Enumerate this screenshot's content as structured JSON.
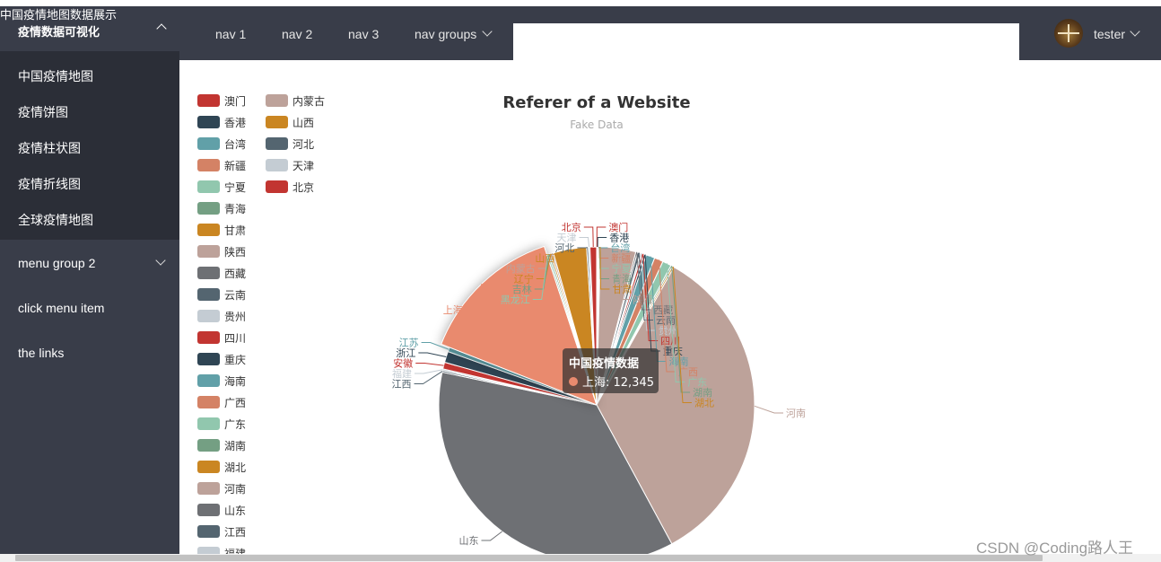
{
  "sidebar": {
    "brand": "中国疫情地图数据展示",
    "group1_title": "疫情数据可视化",
    "items": [
      "中国疫情地图",
      "疫情饼图",
      "疫情柱状图",
      "疫情折线图",
      "全球疫情地图"
    ],
    "group2_title": "menu group 2",
    "click_item": "click menu item",
    "links": "the links"
  },
  "header": {
    "nav": [
      "nav 1",
      "nav 2",
      "nav 3",
      "nav groups"
    ],
    "user": "tester"
  },
  "watermark": "CSDN @Coding路人王",
  "chart_data": {
    "type": "pie",
    "title": "Referer of a Website",
    "subtitle": "Fake Data",
    "tooltip": {
      "series_name": "中国疫情数据",
      "item": "上海",
      "value_text": "12,345"
    },
    "legend": {
      "placement": "left",
      "visible_entries": [
        "澳门",
        "香港",
        "台湾",
        "新疆",
        "宁夏",
        "青海",
        "甘肃",
        "陕西",
        "西藏",
        "云南",
        "贵州",
        "四川",
        "重庆",
        "海南",
        "广西",
        "广东",
        "湖南",
        "湖北",
        "河南",
        "山东",
        "江西",
        "福建",
        "内蒙古",
        "山西",
        "河北",
        "天津",
        "北京"
      ]
    },
    "slices": [
      {
        "name": "澳门",
        "value": 46,
        "color": "#c23531"
      },
      {
        "name": "香港",
        "value": 80,
        "color": "#2f4554"
      },
      {
        "name": "台湾",
        "value": 90,
        "color": "#61a0a8"
      },
      {
        "name": "新疆",
        "value": 30,
        "color": "#d48265"
      },
      {
        "name": "宁夏",
        "value": 30,
        "color": "#91c7ae"
      },
      {
        "name": "青海",
        "value": 25,
        "color": "#749f83"
      },
      {
        "name": "甘肃",
        "value": 30,
        "color": "#ca8622"
      },
      {
        "name": "陕西",
        "value": 3200,
        "color": "#bda29a"
      },
      {
        "name": "西藏",
        "value": 150,
        "color": "#6e7074"
      },
      {
        "name": "云南",
        "value": 260,
        "color": "#546570"
      },
      {
        "name": "贵州",
        "value": 150,
        "color": "#c4ccd3"
      },
      {
        "name": "四川",
        "value": 200,
        "color": "#c23531"
      },
      {
        "name": "重庆",
        "value": 200,
        "color": "#2f4554"
      },
      {
        "name": "海南",
        "value": 800,
        "color": "#61a0a8"
      },
      {
        "name": "广西",
        "value": 800,
        "color": "#d48265"
      },
      {
        "name": "广东",
        "value": 800,
        "color": "#91c7ae"
      },
      {
        "name": "湖南",
        "value": 150,
        "color": "#749f83"
      },
      {
        "name": "湖北",
        "value": 150,
        "color": "#ca8622"
      },
      {
        "name": "河南",
        "value": 30000,
        "color": "#bda29a"
      },
      {
        "name": "山东",
        "value": 32000,
        "color": "#6e7074"
      },
      {
        "name": "江西",
        "value": 150,
        "color": "#546570"
      },
      {
        "name": "福建",
        "value": 150,
        "color": "#c4ccd3"
      },
      {
        "name": "安徽",
        "value": 600,
        "color": "#c23531"
      },
      {
        "name": "浙江",
        "value": 1000,
        "color": "#2f4554"
      },
      {
        "name": "江苏",
        "value": 400,
        "color": "#61a0a8"
      },
      {
        "name": "上海",
        "value": 12345,
        "color": "#e98a6e",
        "highlight": true
      },
      {
        "name": "黑龙江",
        "value": 150,
        "color": "#91c7ae"
      },
      {
        "name": "吉林",
        "value": 150,
        "color": "#749f83"
      },
      {
        "name": "辽宁",
        "value": 150,
        "color": "#ca8622"
      },
      {
        "name": "内蒙古",
        "value": 150,
        "color": "#bda29a"
      },
      {
        "name": "山西",
        "value": 3000,
        "color": "#ca8622"
      },
      {
        "name": "河北",
        "value": 150,
        "color": "#546570"
      },
      {
        "name": "天津",
        "value": 150,
        "color": "#c4ccd3"
      },
      {
        "name": "北京",
        "value": 600,
        "color": "#c23531"
      }
    ]
  }
}
